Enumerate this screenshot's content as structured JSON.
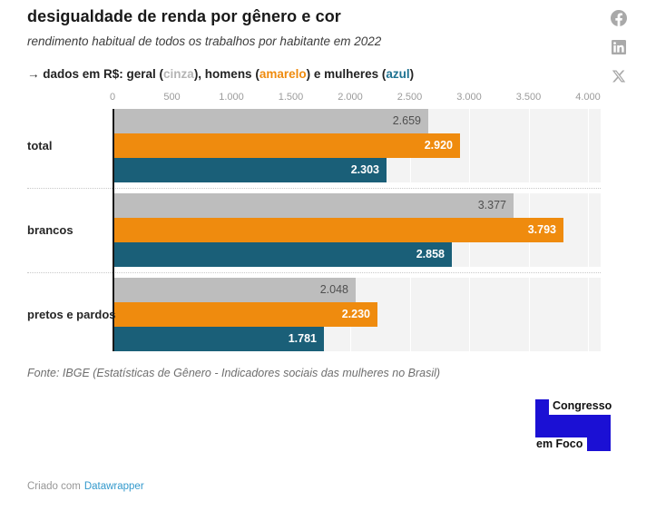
{
  "header": {
    "title": "desigualdade de renda por gênero e cor",
    "subtitle": "rendimento habitual de todos os trabalhos por habitante em 2022",
    "legend_parts": [
      {
        "text": "→ dados em R$: geral (",
        "color": "#232323"
      },
      {
        "text": "cinza",
        "color": "#b5b5b5"
      },
      {
        "text": "), homens (",
        "color": "#232323"
      },
      {
        "text": "amarelo",
        "color": "#ef8b0e"
      },
      {
        "text": ") e mulheres (",
        "color": "#232323"
      },
      {
        "text": "azul",
        "color": "#1f7392"
      },
      {
        "text": ")",
        "color": "#232323"
      }
    ]
  },
  "social": {
    "icon_color": "#a9a9a9",
    "buttons": [
      "facebook",
      "linkedin",
      "x-twitter"
    ]
  },
  "chart_data": {
    "type": "bar",
    "orientation": "horizontal",
    "title": "desigualdade de renda por gênero e cor",
    "subtitle": "rendimento habitual de todos os trabalhos por habitante em 2022",
    "unit": "R$",
    "categories": [
      "total",
      "brancos",
      "pretos e pardos"
    ],
    "series": [
      {
        "name": "geral",
        "color": "#bdbdbd",
        "label_color": "#4f4f4f",
        "values": [
          2659,
          3377,
          2048
        ],
        "value_labels": [
          "2.659",
          "3.377",
          "2.048"
        ]
      },
      {
        "name": "homens",
        "color": "#ef8b0e",
        "label_color": "#ffffff",
        "values": [
          2920,
          3793,
          2230
        ],
        "value_labels": [
          "2.920",
          "3.793",
          "2.230"
        ]
      },
      {
        "name": "mulheres",
        "color": "#1a5f78",
        "label_color": "#ffffff",
        "values": [
          2303,
          2858,
          1781
        ],
        "value_labels": [
          "2.303",
          "2.858",
          "1.781"
        ]
      }
    ],
    "xlim": [
      0,
      4000
    ],
    "ticks": [
      {
        "value": 0,
        "label": "0"
      },
      {
        "value": 500,
        "label": "500"
      },
      {
        "value": 1000,
        "label": "1.000"
      },
      {
        "value": 1500,
        "label": "1.500"
      },
      {
        "value": 2000,
        "label": "2.000"
      },
      {
        "value": 2500,
        "label": "2.500"
      },
      {
        "value": 3000,
        "label": "3.000"
      },
      {
        "value": 3500,
        "label": "3.500"
      },
      {
        "value": 4000,
        "label": "4.000"
      }
    ],
    "grid": true,
    "legend_position": "top",
    "plot_background": "#f3f3f3"
  },
  "footer": {
    "source": "Fonte: IBGE (Estatísticas de Gênero - Indicadores sociais das mulheres no Brasil)",
    "logo": {
      "line1": "Congresso",
      "line2": "em Foco",
      "color": "#1b10d4"
    },
    "attribution_prefix": "Criado com",
    "attribution_link": "Datawrapper"
  }
}
